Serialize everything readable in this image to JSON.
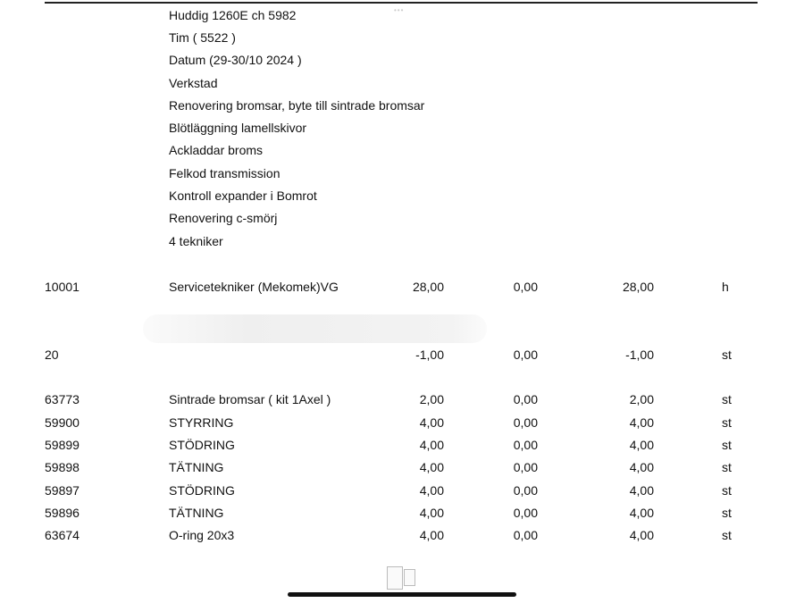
{
  "header_lines": [
    "Huddig 1260E ch 5982",
    "Tim ( 5522 )",
    "Datum (29-30/10 2024 )",
    "Verkstad",
    "Renovering bromsar, byte till sintrade bromsar",
    "Blötläggning lamellskivor",
    "Ackladdar broms",
    "Felkod transmission",
    "Kontroll expander i Bomrot",
    "Renovering c-smörj",
    "4 tekniker"
  ],
  "rows": [
    {
      "code": "10001",
      "desc": "Servicetekniker (Mekomek)VG",
      "qty": "28,00",
      "price": "0,00",
      "total": "28,00",
      "unit": "h"
    },
    {
      "code": "20",
      "desc": "",
      "qty": "-1,00",
      "price": "0,00",
      "total": "-1,00",
      "unit": "st"
    },
    {
      "code": "63773",
      "desc": "Sintrade bromsar ( kit 1Axel )",
      "qty": "2,00",
      "price": "0,00",
      "total": "2,00",
      "unit": "st"
    },
    {
      "code": "59900",
      "desc": "STYRRING",
      "qty": "4,00",
      "price": "0,00",
      "total": "4,00",
      "unit": "st"
    },
    {
      "code": "59899",
      "desc": "STÖDRING",
      "qty": "4,00",
      "price": "0,00",
      "total": "4,00",
      "unit": "st"
    },
    {
      "code": "59898",
      "desc": "TÄTNING",
      "qty": "4,00",
      "price": "0,00",
      "total": "4,00",
      "unit": "st"
    },
    {
      "code": "59897",
      "desc": "STÖDRING",
      "qty": "4,00",
      "price": "0,00",
      "total": "4,00",
      "unit": "st"
    },
    {
      "code": "59896",
      "desc": "TÄTNING",
      "qty": "4,00",
      "price": "0,00",
      "total": "4,00",
      "unit": "st"
    },
    {
      "code": "63674",
      "desc": "O-ring 20x3",
      "qty": "4,00",
      "price": "0,00",
      "total": "4,00",
      "unit": "st"
    }
  ],
  "icons": {
    "page_thumbnails": "page-thumbnails-icon",
    "home_indicator": "home-indicator"
  }
}
